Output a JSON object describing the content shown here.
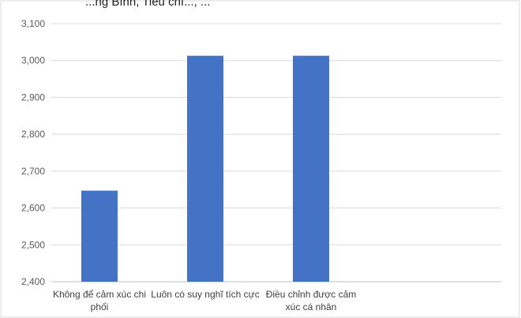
{
  "header_fragment": "...ng Bình, Tiêu chí..., ...",
  "chart_data": {
    "type": "bar",
    "categories": [
      [
        "Không để cảm xúc chi",
        "phối"
      ],
      [
        "Luôn có suy nghĩ tích cực"
      ],
      [
        "Điều chỉnh được cảm",
        "xúc cá nhân"
      ]
    ],
    "values": [
      2.647,
      3.013,
      3.013
    ],
    "ylim": [
      2.4,
      3.1
    ],
    "yticks": [
      "2,400",
      "2,500",
      "2,600",
      "2,700",
      "2,800",
      "2,900",
      "3,000",
      "3,100"
    ],
    "ytick_values": [
      2.4,
      2.5,
      2.6,
      2.7,
      2.8,
      2.9,
      3.0,
      3.1
    ],
    "grid": true,
    "bar_color": "#4472C4",
    "grid_color": "#D9D9D9",
    "frame_color": "#D9D9D9"
  }
}
